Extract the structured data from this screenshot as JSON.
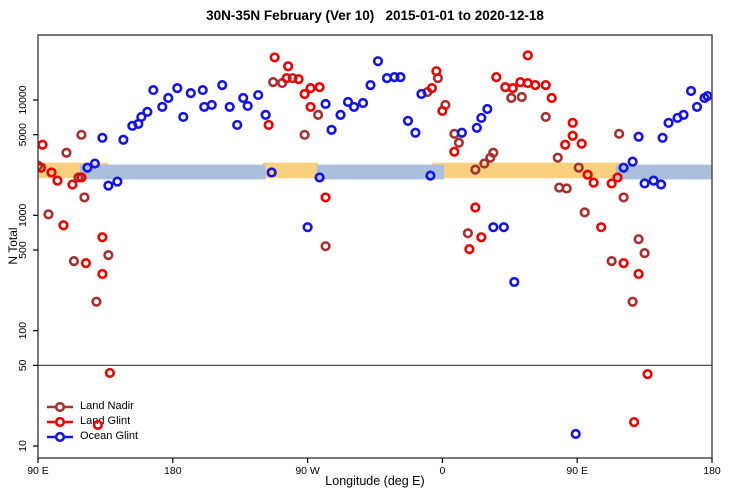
{
  "chart_data": {
    "type": "scatter",
    "title": "30N-35N February (Ver 10)   2015-01-01 to 2020-12-18",
    "xlabel": "Longitude (deg E)",
    "ylabel": "N Total",
    "y_scale": "log10",
    "ylim": [
      8.2,
      36000
    ],
    "x_axis_deg_range": [
      90,
      540
    ],
    "x_axis_note": "longitude axis wraps eastward: 90E to 180 to 90W to 0 to 90E to 180",
    "x_ticks": [
      {
        "pos": 90,
        "label": "90 E"
      },
      {
        "pos": 180,
        "label": "180"
      },
      {
        "pos": 270,
        "label": "90 W"
      },
      {
        "pos": 360,
        "label": "0"
      },
      {
        "pos": 450,
        "label": "90 E"
      },
      {
        "pos": 540,
        "label": "180"
      }
    ],
    "y_ticks": [
      10,
      50,
      100,
      500,
      1000,
      5000,
      10000
    ],
    "threshold_line_y": 50,
    "bands": {
      "description": "saturated-count band near N=2500",
      "orange_color": "#F8D07E",
      "blue_color": "#A9BFDC",
      "orange_n_range": [
        2100,
        2860
      ],
      "blue_n_range": [
        2050,
        2750
      ],
      "orange_segments_deg": [
        [
          90,
          137
        ],
        [
          240,
          277
        ],
        [
          353,
          481
        ]
      ],
      "blue_segments_deg": [
        [
          118,
          242
        ],
        [
          276,
          361
        ],
        [
          476,
          540
        ]
      ]
    },
    "legend": {
      "position": "bottom-left",
      "items": [
        "Land Nadir",
        "Land Glint",
        "Ocean Glint"
      ]
    },
    "series": [
      {
        "name": "Land Nadir",
        "color": "#A53030",
        "points": [
          [
            90,
            2700
          ],
          [
            119,
            4990
          ],
          [
            109,
            3490
          ],
          [
            117,
            2130
          ],
          [
            121,
            1430
          ],
          [
            97,
            1020
          ],
          [
            114,
            401
          ],
          [
            137,
            452
          ],
          [
            129,
            178
          ],
          [
            247,
            14290
          ],
          [
            253,
            14020
          ],
          [
            260,
            15480
          ],
          [
            277,
            7430
          ],
          [
            268,
            4990
          ],
          [
            282,
            540
          ],
          [
            357,
            15480
          ],
          [
            350,
            11720
          ],
          [
            362,
            9060
          ],
          [
            368,
            5090
          ],
          [
            371,
            4260
          ],
          [
            406,
            10400
          ],
          [
            413,
            10620
          ],
          [
            394,
            3490
          ],
          [
            392,
            3160
          ],
          [
            388,
            2810
          ],
          [
            382,
            2490
          ],
          [
            377,
            700
          ],
          [
            429,
            7130
          ],
          [
            437,
            3160
          ],
          [
            443,
            1710
          ],
          [
            438,
            1740
          ],
          [
            451,
            2590
          ],
          [
            478,
            5090
          ],
          [
            481,
            1430
          ],
          [
            455,
            1060
          ],
          [
            491,
            621
          ],
          [
            495,
            470
          ],
          [
            473,
            401
          ],
          [
            487,
            178
          ]
        ]
      },
      {
        "name": "Land Glint",
        "color": "#EE0000",
        "points": [
          [
            93,
            4090
          ],
          [
            92,
            2590
          ],
          [
            99,
            2350
          ],
          [
            103,
            2000
          ],
          [
            119,
            2130
          ],
          [
            113,
            1850
          ],
          [
            107,
            820
          ],
          [
            133,
            646
          ],
          [
            122,
            385
          ],
          [
            133,
            310
          ],
          [
            248,
            23400
          ],
          [
            257,
            19630
          ],
          [
            256,
            15480
          ],
          [
            264,
            15170
          ],
          [
            268,
            11270
          ],
          [
            272,
            12680
          ],
          [
            278,
            12940
          ],
          [
            272,
            8710
          ],
          [
            244,
            6080
          ],
          [
            282,
            1430
          ],
          [
            417,
            24400
          ],
          [
            356,
            17780
          ],
          [
            353,
            12680
          ],
          [
            360,
            8040
          ],
          [
            368,
            3560
          ],
          [
            396,
            15780
          ],
          [
            402,
            12940
          ],
          [
            407,
            12680
          ],
          [
            412,
            14290
          ],
          [
            417,
            14020
          ],
          [
            422,
            13460
          ],
          [
            429,
            13460
          ],
          [
            433,
            10400
          ],
          [
            447,
            6340
          ],
          [
            447,
            4900
          ],
          [
            442,
            4090
          ],
          [
            453,
            4180
          ],
          [
            457,
            2250
          ],
          [
            461,
            1920
          ],
          [
            473,
            1890
          ],
          [
            477,
            2130
          ],
          [
            466,
            789
          ],
          [
            481,
            385
          ],
          [
            491,
            310
          ],
          [
            382,
            1170
          ],
          [
            386,
            646
          ],
          [
            378,
            509
          ],
          [
            138,
            43
          ],
          [
            130,
            15.2
          ],
          [
            497,
            42
          ],
          [
            488,
            16.1
          ]
        ]
      },
      {
        "name": "Ocean Glint",
        "color": "#1414E6",
        "points": [
          [
            167,
            12190
          ],
          [
            183,
            12680
          ],
          [
            192,
            11480
          ],
          [
            200,
            12190
          ],
          [
            177,
            10400
          ],
          [
            173,
            8710
          ],
          [
            163,
            7890
          ],
          [
            159,
            7130
          ],
          [
            157,
            6210
          ],
          [
            153,
            5970
          ],
          [
            187,
            7130
          ],
          [
            133,
            4700
          ],
          [
            147,
            4520
          ],
          [
            123,
            2590
          ],
          [
            128,
            2810
          ],
          [
            137,
            1810
          ],
          [
            143,
            1960
          ],
          [
            213,
            13460
          ],
          [
            227,
            10400
          ],
          [
            237,
            11040
          ],
          [
            206,
            9060
          ],
          [
            201,
            8710
          ],
          [
            218,
            8710
          ],
          [
            230,
            8880
          ],
          [
            242,
            7430
          ],
          [
            223,
            6080
          ],
          [
            282,
            9240
          ],
          [
            297,
            9610
          ],
          [
            301,
            8710
          ],
          [
            307,
            9420
          ],
          [
            292,
            7430
          ],
          [
            286,
            5510
          ],
          [
            312,
            13460
          ],
          [
            317,
            21700
          ],
          [
            246,
            2350
          ],
          [
            278,
            2130
          ],
          [
            270,
            789
          ],
          [
            323,
            15480
          ],
          [
            328,
            15780
          ],
          [
            332,
            15780
          ],
          [
            346,
            11270
          ],
          [
            337,
            6590
          ],
          [
            342,
            5200
          ],
          [
            373,
            5200
          ],
          [
            383,
            5740
          ],
          [
            390,
            8360
          ],
          [
            386,
            6990
          ],
          [
            352,
            2210
          ],
          [
            394,
            789
          ],
          [
            401,
            789
          ],
          [
            526,
            11960
          ],
          [
            535,
            10400
          ],
          [
            537,
            10820
          ],
          [
            530,
            8710
          ],
          [
            521,
            7430
          ],
          [
            517,
            6990
          ],
          [
            511,
            6340
          ],
          [
            491,
            4800
          ],
          [
            507,
            4700
          ],
          [
            481,
            2590
          ],
          [
            487,
            2920
          ],
          [
            495,
            1890
          ],
          [
            501,
            2000
          ],
          [
            506,
            1850
          ],
          [
            408,
            264
          ],
          [
            449,
            12.7
          ]
        ]
      }
    ],
    "style": {
      "border_color": "#404040",
      "threshold_line_color": "#505050",
      "tick_color": "#000000",
      "marker": "open-circle"
    }
  }
}
